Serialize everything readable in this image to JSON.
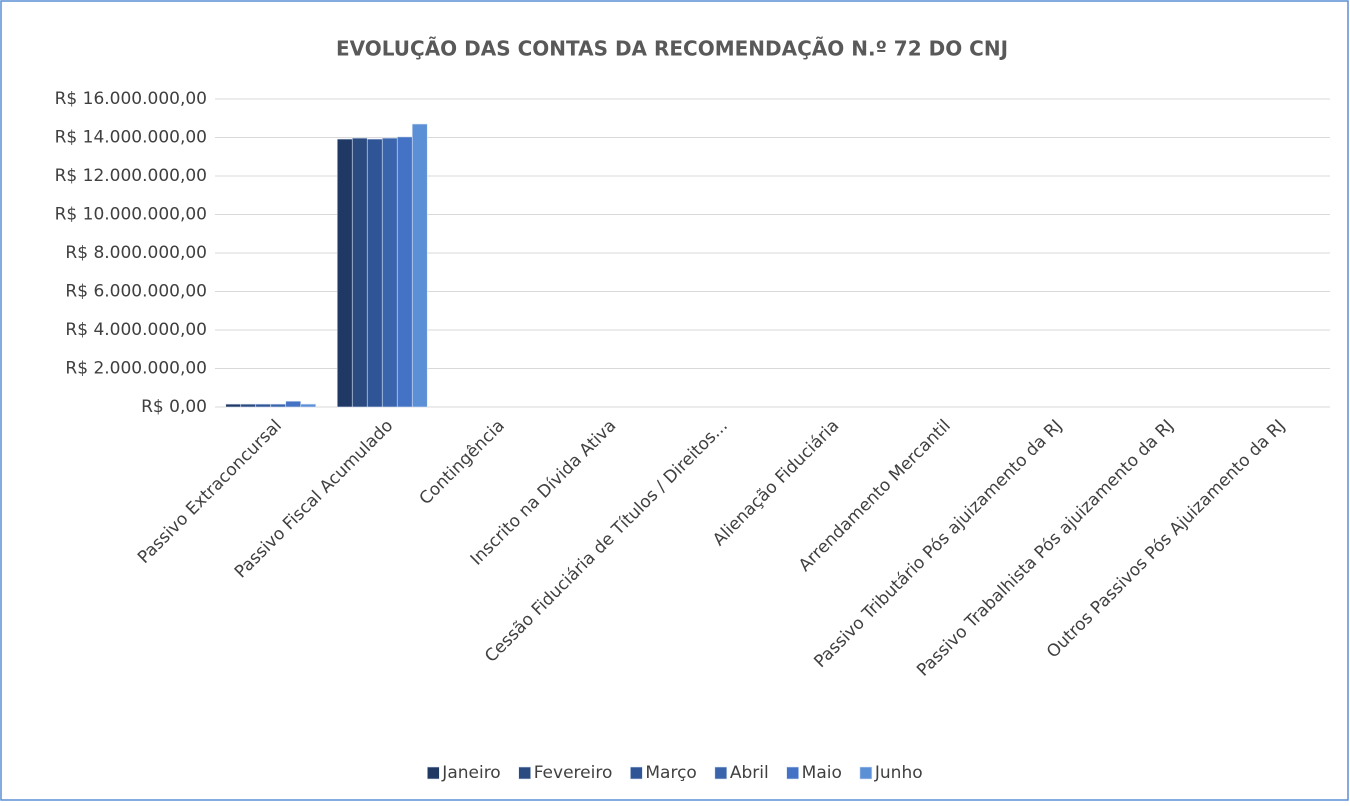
{
  "chart_data": {
    "type": "bar",
    "title": "EVOLUÇÃO DAS CONTAS DA RECOMENDAÇÃO N.º 72 DO CNJ",
    "categories": [
      "Passivo Extraconcursal",
      "Passivo Fiscal Acumulado",
      "Contingência",
      "Inscrito na Dívida Ativa",
      "Cessão Fiduciária de Títulos / Direitos...",
      "Alienação Fiduciária",
      "Arrendamento Mercantil",
      "Passivo Tributário Pós ajuizamento da RJ",
      "Passivo Trabalhista Pós ajuizamento da RJ",
      "Outros Passivos Pós Ajuizamento da RJ"
    ],
    "series": [
      {
        "name": "Janeiro",
        "color": "#1f3864",
        "values": [
          150000,
          13920000,
          0,
          0,
          0,
          0,
          0,
          0,
          0,
          0
        ]
      },
      {
        "name": "Fevereiro",
        "color": "#2a4a80",
        "values": [
          150000,
          13970000,
          0,
          0,
          0,
          0,
          0,
          0,
          0,
          0
        ]
      },
      {
        "name": "Março",
        "color": "#2f5597",
        "values": [
          150000,
          13920000,
          0,
          0,
          0,
          0,
          0,
          0,
          0,
          0
        ]
      },
      {
        "name": "Abril",
        "color": "#3a65ad",
        "values": [
          150000,
          13970000,
          0,
          0,
          0,
          0,
          0,
          0,
          0,
          0
        ]
      },
      {
        "name": "Maio",
        "color": "#4472c4",
        "values": [
          300000,
          14030000,
          0,
          0,
          0,
          0,
          0,
          0,
          0,
          0
        ]
      },
      {
        "name": "Junho",
        "color": "#5b8fd6",
        "values": [
          150000,
          14700000,
          0,
          0,
          0,
          0,
          0,
          0,
          0,
          0
        ]
      }
    ],
    "ylim": [
      0,
      16000000
    ],
    "yticks": [
      {
        "value": 0,
        "label": "R$ 0,00"
      },
      {
        "value": 2000000,
        "label": "R$ 2.000.000,00"
      },
      {
        "value": 4000000,
        "label": "R$ 4.000.000,00"
      },
      {
        "value": 6000000,
        "label": "R$ 6.000.000,00"
      },
      {
        "value": 8000000,
        "label": "R$ 8.000.000,00"
      },
      {
        "value": 10000000,
        "label": "R$ 10.000.000,00"
      },
      {
        "value": 12000000,
        "label": "R$ 12.000.000,00"
      },
      {
        "value": 14000000,
        "label": "R$ 14.000.000,00"
      },
      {
        "value": 16000000,
        "label": "R$ 16.000.000,00"
      }
    ],
    "grid": true,
    "legend": "bottom"
  }
}
